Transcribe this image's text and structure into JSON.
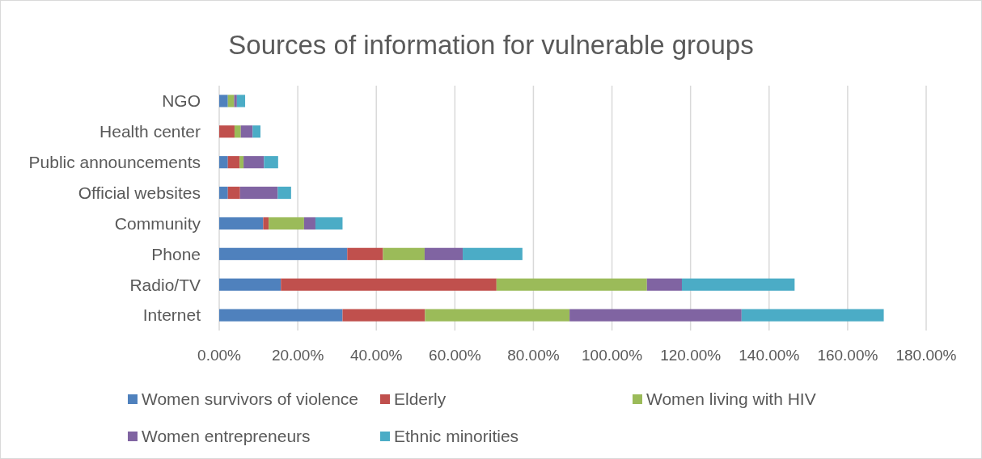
{
  "chart_data": {
    "type": "bar",
    "orientation": "horizontal",
    "stacked": true,
    "title": "Sources of information for vulnerable groups",
    "categories": [
      "NGO",
      "Health center",
      "Public announcements",
      "Official websites",
      "Community",
      "Phone",
      "Radio/TV",
      "Internet"
    ],
    "series": [
      {
        "name": "Women survivors of violence",
        "color": "#4f81bd",
        "values": [
          2.2,
          0,
          2.2,
          2.2,
          11.2,
          32.6,
          15.7,
          31.4
        ]
      },
      {
        "name": "Elderly",
        "color": "#c0504d",
        "values": [
          0,
          3.9,
          3.0,
          3.1,
          1.4,
          9.1,
          54.9,
          21.0
        ]
      },
      {
        "name": "Women living with HIV",
        "color": "#9bbb59",
        "values": [
          1.6,
          1.6,
          1.0,
          0,
          9.0,
          10.6,
          38.3,
          36.8
        ]
      },
      {
        "name": "Women entrepreneurs",
        "color": "#8064a2",
        "values": [
          0.7,
          3.0,
          5.2,
          9.6,
          2.9,
          9.7,
          8.9,
          43.8
        ]
      },
      {
        "name": "Ethnic minorities",
        "color": "#4bacc6",
        "values": [
          2.1,
          2.0,
          3.6,
          3.4,
          6.9,
          15.2,
          28.7,
          36.2
        ]
      }
    ],
    "xlim": [
      0,
      180
    ],
    "xticks": [
      {
        "value": 0,
        "label": "0.00%"
      },
      {
        "value": 20,
        "label": "20.00%"
      },
      {
        "value": 40,
        "label": "40.00%"
      },
      {
        "value": 60,
        "label": "60.00%"
      },
      {
        "value": 80,
        "label": "80.00%"
      },
      {
        "value": 100,
        "label": "100.00%"
      },
      {
        "value": 120,
        "label": "120.00%"
      },
      {
        "value": 140,
        "label": "140.00%"
      },
      {
        "value": 160,
        "label": "160.00%"
      },
      {
        "value": 180,
        "label": "180.00%"
      }
    ],
    "grid": "x",
    "legend": "bottom"
  }
}
